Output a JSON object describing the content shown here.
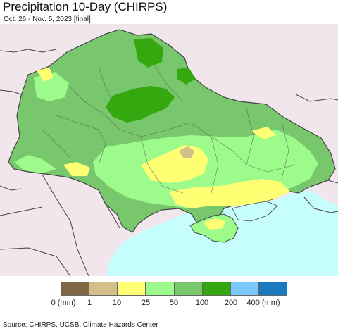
{
  "title": "Precipitation 10-Day (CHIRPS)",
  "subtitle": "Oct. 26 - Nov. 5, 2023 [final]",
  "legend": {
    "colors": [
      "#7f6647",
      "#d3bf87",
      "#ffff73",
      "#9dfb8c",
      "#78c76d",
      "#36a80f",
      "#7cc8fb",
      "#1a79bf"
    ],
    "labels": [
      "0 (mm)",
      "1",
      "10",
      "25",
      "50",
      "100",
      "200",
      "400 (mm)"
    ]
  },
  "colors": {
    "sea": "#c6fdfd",
    "neighbor_land": "#f0e6ec",
    "border": "#444444"
  },
  "source": "Source: CHIRPS, UCSB, Climate Hazards Center"
}
